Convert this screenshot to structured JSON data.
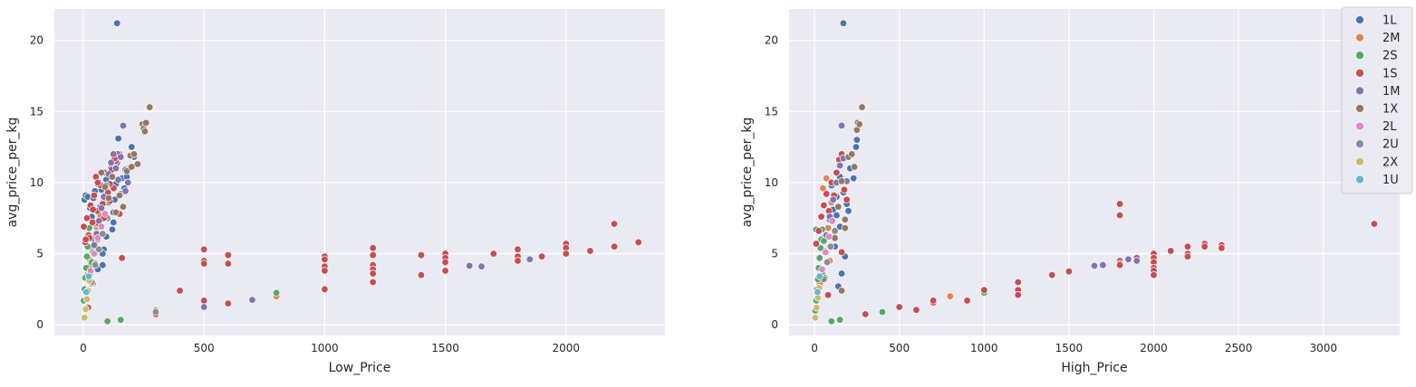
{
  "colors": {
    "background": "#eaeaf2",
    "grid": "#ffffff",
    "text": "#262626",
    "series": {
      "1L": "#4c72b0",
      "2M": "#dd8452",
      "2S": "#55a868",
      "1S": "#c44e52",
      "1M": "#8172b3",
      "1X": "#937860",
      "2L": "#da8bc3",
      "2U": "#8c8c8c",
      "2X": "#ccb974",
      "1U": "#64b5cd"
    }
  },
  "legend": {
    "placement": "upper-right of right panel",
    "items": [
      "1L",
      "2M",
      "2S",
      "1S",
      "1M",
      "1X",
      "2L",
      "2U",
      "2X",
      "1U"
    ]
  },
  "chart_data": [
    {
      "type": "scatter",
      "xlabel": "Low_Price",
      "ylabel": "avg_price_per_kg",
      "xlim": [
        -120,
        2410
      ],
      "ylim": [
        -0.75,
        22.2
      ],
      "xticks": [
        0,
        500,
        1000,
        1500,
        2000
      ],
      "yticks": [
        0,
        5,
        10,
        15,
        20
      ],
      "grid": true,
      "series": [
        {
          "name": "1L",
          "x": [
            5,
            10,
            18,
            28,
            35,
            42,
            48,
            55,
            60,
            65,
            70,
            75,
            80,
            85,
            90,
            95,
            100,
            105,
            110,
            115,
            120,
            125,
            130,
            135,
            140,
            145,
            150,
            155,
            160,
            170,
            180,
            190,
            200,
            210,
            140,
            80,
            60,
            95,
            125,
            175
          ],
          "y": [
            8.8,
            9.1,
            9.0,
            8.2,
            7.6,
            8.9,
            9.4,
            6.8,
            9.9,
            7.2,
            8.3,
            9.5,
            4.2,
            5.3,
            9.1,
            10.2,
            7.5,
            8.6,
            9.8,
            11.0,
            6.7,
            7.9,
            8.8,
            9.9,
            11.4,
            13.1,
            12.0,
            9.2,
            10.3,
            9.6,
            10.4,
            11.0,
            12.5,
            11.8,
            21.2,
            5.0,
            3.9,
            6.2,
            7.2,
            10.9
          ]
        },
        {
          "name": "2M",
          "x": [
            15,
            25,
            35,
            45,
            55,
            65,
            75,
            85,
            40,
            30,
            50,
            800,
            70
          ],
          "y": [
            3.5,
            4.6,
            5.4,
            6.1,
            6.9,
            7.4,
            8.0,
            8.7,
            2.9,
            4.2,
            5.8,
            2.0,
            7.7
          ]
        },
        {
          "name": "2S",
          "x": [
            2,
            5,
            8,
            12,
            15,
            18,
            22,
            25,
            28,
            32,
            35,
            40,
            45,
            50,
            55,
            60,
            65,
            20,
            30,
            100,
            155,
            800
          ],
          "y": [
            1.7,
            2.5,
            3.3,
            4.0,
            4.8,
            5.5,
            6.2,
            6.8,
            3.6,
            2.9,
            4.4,
            5.1,
            6.0,
            4.3,
            7.1,
            5.3,
            6.3,
            2.4,
            3.0,
            0.25,
            0.35,
            2.25
          ]
        },
        {
          "name": "1S",
          "x": [
            2,
            8,
            15,
            22,
            30,
            38,
            45,
            52,
            58,
            65,
            72,
            80,
            88,
            95,
            102,
            110,
            118,
            126,
            134,
            142,
            150,
            25,
            40,
            60,
            85,
            110,
            130,
            160,
            500,
            500,
            500,
            500,
            600,
            600,
            600,
            1000,
            1000,
            1000,
            1000,
            1000,
            1200,
            1200,
            1200,
            1200,
            1200,
            1200,
            1400,
            1400,
            1500,
            1500,
            1500,
            1500,
            1700,
            1800,
            1800,
            1800,
            1900,
            2000,
            2000,
            2000,
            2100,
            2200,
            2200,
            2300,
            300,
            400,
            20,
            10
          ],
          "y": [
            6.9,
            5.8,
            7.5,
            6.3,
            8.4,
            7.2,
            9.1,
            10.4,
            8.0,
            7.1,
            9.8,
            8.5,
            10.7,
            7.6,
            9.3,
            8.7,
            10.9,
            9.6,
            11.5,
            12.0,
            7.8,
            6.1,
            8.1,
            10.0,
            7.5,
            9.9,
            11.7,
            4.7,
            5.3,
            4.5,
            4.3,
            1.7,
            4.9,
            4.3,
            1.5,
            4.8,
            4.6,
            4.1,
            3.8,
            2.5,
            5.4,
            4.9,
            4.2,
            3.9,
            3.6,
            3.0,
            4.9,
            3.5,
            5.0,
            4.7,
            4.4,
            3.8,
            5.0,
            5.3,
            4.8,
            4.5,
            4.8,
            5.7,
            5.4,
            5.0,
            5.2,
            7.1,
            5.5,
            5.8,
            0.75,
            2.4,
            1.2,
            6.0
          ]
        },
        {
          "name": "1M",
          "x": [
            45,
            55,
            65,
            75,
            85,
            95,
            105,
            115,
            125,
            135,
            145,
            155,
            165,
            175,
            185,
            700,
            1600,
            1650,
            1850,
            500
          ],
          "y": [
            5.6,
            6.4,
            7.3,
            8.2,
            9.0,
            9.8,
            10.6,
            11.4,
            12.0,
            11.0,
            10.2,
            11.8,
            14.0,
            9.4,
            10.0,
            1.75,
            4.15,
            4.1,
            4.6,
            1.25
          ]
        },
        {
          "name": "1X",
          "x": [
            60,
            75,
            90,
            105,
            120,
            135,
            150,
            165,
            180,
            195,
            210,
            225,
            245,
            250,
            255,
            260,
            275,
            300,
            200
          ],
          "y": [
            6.0,
            10.7,
            9.7,
            8.9,
            10.4,
            7.9,
            9.1,
            8.3,
            10.8,
            11.9,
            12.0,
            11.3,
            14.1,
            13.8,
            13.6,
            14.2,
            15.3,
            1.0,
            11.1
          ]
        },
        {
          "name": "2L",
          "x": [
            30,
            45,
            60,
            75,
            90
          ],
          "y": [
            3.8,
            5.0,
            6.1,
            6.9,
            7.8
          ]
        },
        {
          "name": "2U",
          "x": [
            35,
            50,
            65,
            80,
            300
          ],
          "y": [
            3.0,
            4.2,
            5.3,
            6.4,
            0.9
          ]
        },
        {
          "name": "2X",
          "x": [
            5,
            10,
            15,
            20,
            25
          ],
          "y": [
            0.5,
            1.1,
            1.8,
            2.4,
            3.1
          ]
        },
        {
          "name": "1U",
          "x": [
            12,
            22
          ],
          "y": [
            2.3,
            3.4
          ]
        }
      ]
    },
    {
      "type": "scatter",
      "xlabel": "High_Price",
      "ylabel": "avg_price_per_kg",
      "xlim": [
        -150,
        3450
      ],
      "ylim": [
        -0.75,
        22.2
      ],
      "xticks": [
        0,
        500,
        1000,
        1500,
        2000,
        2500,
        3000
      ],
      "yticks": [
        0,
        5,
        10,
        15,
        20
      ],
      "grid": true,
      "series": [
        {
          "name": "1L",
          "x": [
            60,
            90,
            110,
            130,
            150,
            170,
            190,
            210,
            230,
            245,
            250,
            120,
            140,
            160,
            180,
            200,
            170,
            150,
            130,
            100
          ],
          "y": [
            6.2,
            7.4,
            8.1,
            9.0,
            10.4,
            9.3,
            8.5,
            11.0,
            10.3,
            12.5,
            13.0,
            5.5,
            2.7,
            3.6,
            4.8,
            8.0,
            21.2,
            6.9,
            7.7,
            9.8
          ]
        },
        {
          "name": "2M",
          "x": [
            40,
            60,
            80,
            100,
            50,
            70,
            90,
            800,
            30
          ],
          "y": [
            3.9,
            5.2,
            6.8,
            8.6,
            9.6,
            10.3,
            4.5,
            2.0,
            2.9
          ]
        },
        {
          "name": "2S",
          "x": [
            5,
            10,
            15,
            20,
            25,
            30,
            35,
            40,
            45,
            50,
            55,
            60,
            100,
            150,
            400,
            1000,
            10
          ],
          "y": [
            1.0,
            1.7,
            2.5,
            3.2,
            4.0,
            4.7,
            5.4,
            6.0,
            6.7,
            3.5,
            5.9,
            3.3,
            0.25,
            0.35,
            0.9,
            2.25,
            6.7
          ]
        },
        {
          "name": "1S",
          "x": [
            10,
            25,
            40,
            55,
            70,
            85,
            100,
            115,
            130,
            145,
            160,
            175,
            190,
            300,
            500,
            600,
            700,
            700,
            900,
            1000,
            1200,
            1200,
            1200,
            1400,
            1500,
            1800,
            1800,
            1800,
            1800,
            1800,
            1900,
            2000,
            2000,
            2000,
            2000,
            2000,
            2000,
            2100,
            2200,
            2200,
            2200,
            2300,
            2300,
            2400,
            2400,
            3300,
            80,
            160
          ],
          "y": [
            5.7,
            6.6,
            7.6,
            8.4,
            9.2,
            8.0,
            10.0,
            9.1,
            10.7,
            11.6,
            12.0,
            9.5,
            8.8,
            0.75,
            1.25,
            1.05,
            1.55,
            1.7,
            1.7,
            2.45,
            3.0,
            2.45,
            2.1,
            3.5,
            3.75,
            8.5,
            7.7,
            4.5,
            4.3,
            4.2,
            4.7,
            5.0,
            4.7,
            4.4,
            4.0,
            3.8,
            3.5,
            5.2,
            5.5,
            5.0,
            4.8,
            5.7,
            5.5,
            5.6,
            5.4,
            7.1,
            2.1,
            5.1
          ]
        },
        {
          "name": "1M",
          "x": [
            70,
            90,
            110,
            130,
            150,
            170,
            190,
            1650,
            1700,
            1850,
            1900,
            160
          ],
          "y": [
            6.3,
            7.6,
            8.8,
            10.0,
            11.2,
            11.7,
            10.1,
            4.15,
            4.2,
            4.6,
            4.5,
            14.0
          ]
        },
        {
          "name": "1X",
          "x": [
            120,
            140,
            160,
            180,
            200,
            220,
            235,
            250,
            255,
            265,
            280,
            160,
            180
          ],
          "y": [
            6.1,
            8.3,
            10.1,
            7.4,
            11.8,
            12.0,
            11.1,
            13.7,
            14.2,
            14.1,
            15.3,
            2.4,
            6.8
          ]
        },
        {
          "name": "2L",
          "x": [
            45,
            65,
            85,
            105
          ],
          "y": [
            3.9,
            5.1,
            6.2,
            7.3
          ]
        },
        {
          "name": "2U",
          "x": [
            55,
            75,
            95,
            120
          ],
          "y": [
            3.2,
            4.4,
            5.5,
            6.6
          ]
        },
        {
          "name": "2X",
          "x": [
            5,
            12,
            20,
            28
          ],
          "y": [
            0.5,
            1.2,
            1.9,
            2.6
          ]
        },
        {
          "name": "1U",
          "x": [
            18,
            30
          ],
          "y": [
            2.3,
            3.4
          ]
        }
      ]
    }
  ]
}
